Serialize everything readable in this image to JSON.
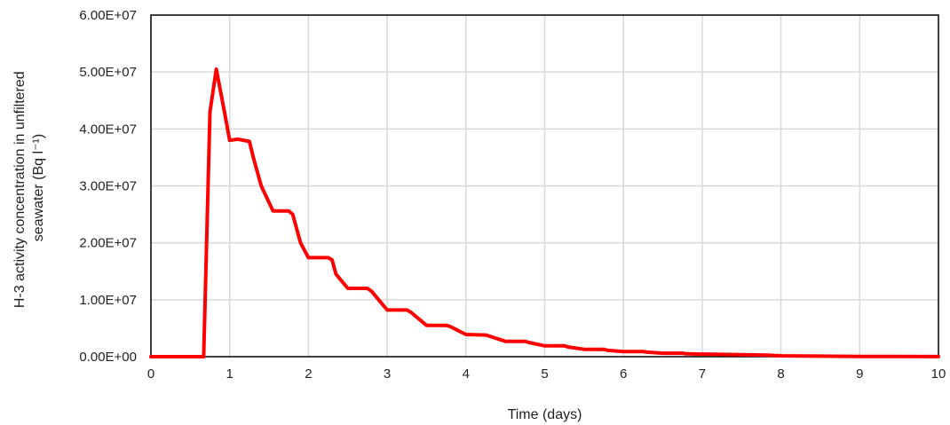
{
  "chart_data": {
    "type": "line",
    "xlabel": "Time (days)",
    "ylabel_line1": "H-3 activity concentration in unfiltered",
    "ylabel_line2": "seawater (Bq l⁻¹)",
    "xlim": [
      0,
      10
    ],
    "ylim": [
      0,
      60000000
    ],
    "x_ticks": [
      0,
      1,
      2,
      3,
      4,
      5,
      6,
      7,
      8,
      9,
      10
    ],
    "x_tick_labels": [
      "0",
      "1",
      "2",
      "3",
      "4",
      "5",
      "6",
      "7",
      "8",
      "9",
      "10"
    ],
    "y_ticks": [
      0,
      10000000,
      20000000,
      30000000,
      40000000,
      50000000,
      60000000
    ],
    "y_tick_labels": [
      "0.00E+00",
      "1.00E+07",
      "2.00E+07",
      "3.00E+07",
      "4.00E+07",
      "5.00E+07",
      "6.00E+07"
    ],
    "grid": true,
    "series": [
      {
        "color": "#ff0000",
        "x": [
          0,
          0.5,
          0.67,
          0.75,
          0.83,
          0.92,
          1.0,
          1.1,
          1.25,
          1.3,
          1.4,
          1.55,
          1.75,
          1.8,
          1.9,
          2.0,
          2.25,
          2.3,
          2.35,
          2.5,
          2.75,
          2.8,
          3.0,
          3.25,
          3.3,
          3.5,
          3.75,
          3.8,
          4.0,
          4.25,
          4.3,
          4.5,
          4.75,
          4.8,
          5.0,
          5.25,
          5.3,
          5.5,
          5.75,
          5.8,
          6.0,
          6.25,
          6.3,
          6.5,
          6.75,
          6.8,
          7.0,
          7.25,
          7.5,
          7.75,
          7.85,
          8.0,
          8.5,
          9.0,
          9.5,
          10.0
        ],
        "y": [
          0,
          0,
          0,
          43000000,
          50500000,
          44000000,
          38000000,
          38200000,
          37800000,
          35000000,
          30000000,
          25600000,
          25600000,
          25000000,
          20000000,
          17400000,
          17400000,
          17000000,
          14500000,
          12000000,
          12000000,
          11500000,
          8200000,
          8200000,
          7800000,
          5500000,
          5500000,
          5300000,
          3900000,
          3800000,
          3600000,
          2700000,
          2700000,
          2500000,
          1900000,
          1900000,
          1700000,
          1300000,
          1300000,
          1100000,
          900000,
          900000,
          800000,
          600000,
          600000,
          500000,
          450000,
          400000,
          350000,
          300000,
          250000,
          150000,
          100000,
          50000,
          30000,
          20000
        ]
      }
    ]
  }
}
